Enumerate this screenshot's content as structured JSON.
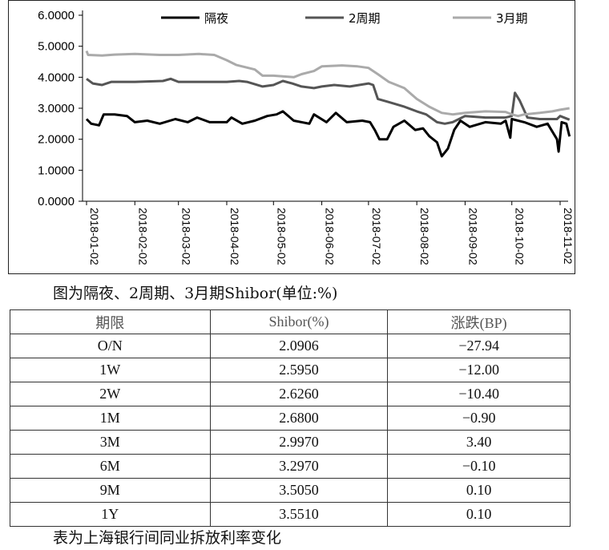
{
  "chart_data": {
    "type": "line",
    "title": "",
    "xlabel": "",
    "ylabel": "",
    "ylim": [
      0,
      6
    ],
    "y_ticks": [
      "0.0000",
      "1.0000",
      "2.0000",
      "3.0000",
      "4.0000",
      "5.0000",
      "6.0000"
    ],
    "x_ticks": [
      "2018-01-02",
      "2018-02-02",
      "2018-03-02",
      "2018-04-02",
      "2018-05-02",
      "2018-06-02",
      "2018-07-02",
      "2018-08-02",
      "2018-09-02",
      "2018-10-02",
      "2018-11-02"
    ],
    "x_range": [
      "2018-01-02",
      "2018-11-02"
    ],
    "legend_position": "top",
    "grid": false,
    "series": [
      {
        "name": "隔夜",
        "color": "#000000",
        "points": [
          [
            "2018-01-02",
            2.65
          ],
          [
            "2018-01-05",
            2.5
          ],
          [
            "2018-01-10",
            2.45
          ],
          [
            "2018-01-13",
            2.8
          ],
          [
            "2018-01-20",
            2.8
          ],
          [
            "2018-01-28",
            2.75
          ],
          [
            "2018-02-02",
            2.55
          ],
          [
            "2018-02-10",
            2.6
          ],
          [
            "2018-02-18",
            2.5
          ],
          [
            "2018-02-28",
            2.65
          ],
          [
            "2018-03-08",
            2.55
          ],
          [
            "2018-03-14",
            2.7
          ],
          [
            "2018-03-22",
            2.55
          ],
          [
            "2018-04-02",
            2.55
          ],
          [
            "2018-04-05",
            2.7
          ],
          [
            "2018-04-12",
            2.5
          ],
          [
            "2018-04-20",
            2.6
          ],
          [
            "2018-04-28",
            2.75
          ],
          [
            "2018-05-04",
            2.8
          ],
          [
            "2018-05-08",
            2.9
          ],
          [
            "2018-05-15",
            2.6
          ],
          [
            "2018-05-25",
            2.5
          ],
          [
            "2018-05-28",
            2.8
          ],
          [
            "2018-06-05",
            2.55
          ],
          [
            "2018-06-11",
            2.85
          ],
          [
            "2018-06-18",
            2.55
          ],
          [
            "2018-06-28",
            2.6
          ],
          [
            "2018-07-03",
            2.55
          ],
          [
            "2018-07-06",
            2.3
          ],
          [
            "2018-07-09",
            2.0
          ],
          [
            "2018-07-14",
            2.0
          ],
          [
            "2018-07-18",
            2.4
          ],
          [
            "2018-07-25",
            2.6
          ],
          [
            "2018-08-01",
            2.3
          ],
          [
            "2018-08-06",
            2.35
          ],
          [
            "2018-08-10",
            2.1
          ],
          [
            "2018-08-15",
            1.9
          ],
          [
            "2018-08-18",
            1.45
          ],
          [
            "2018-08-22",
            1.7
          ],
          [
            "2018-08-26",
            2.3
          ],
          [
            "2018-08-30",
            2.6
          ],
          [
            "2018-09-05",
            2.4
          ],
          [
            "2018-09-15",
            2.55
          ],
          [
            "2018-09-25",
            2.5
          ],
          [
            "2018-09-28",
            2.6
          ],
          [
            "2018-10-01",
            2.05
          ],
          [
            "2018-10-02",
            2.65
          ],
          [
            "2018-10-10",
            2.55
          ],
          [
            "2018-10-18",
            2.4
          ],
          [
            "2018-10-25",
            2.5
          ],
          [
            "2018-10-31",
            2.0
          ],
          [
            "2018-11-01",
            1.6
          ],
          [
            "2018-11-03",
            2.55
          ],
          [
            "2018-11-06",
            2.5
          ],
          [
            "2018-11-08",
            2.09
          ]
        ]
      },
      {
        "name": "2周期",
        "color": "#555555",
        "points": [
          [
            "2018-01-02",
            3.95
          ],
          [
            "2018-01-06",
            3.8
          ],
          [
            "2018-01-12",
            3.75
          ],
          [
            "2018-01-18",
            3.85
          ],
          [
            "2018-02-02",
            3.85
          ],
          [
            "2018-02-20",
            3.88
          ],
          [
            "2018-02-25",
            3.95
          ],
          [
            "2018-03-02",
            3.85
          ],
          [
            "2018-03-20",
            3.85
          ],
          [
            "2018-04-02",
            3.85
          ],
          [
            "2018-04-10",
            3.88
          ],
          [
            "2018-04-15",
            3.85
          ],
          [
            "2018-04-25",
            3.7
          ],
          [
            "2018-05-02",
            3.75
          ],
          [
            "2018-05-08",
            3.88
          ],
          [
            "2018-05-14",
            3.8
          ],
          [
            "2018-05-20",
            3.7
          ],
          [
            "2018-05-28",
            3.65
          ],
          [
            "2018-06-02",
            3.7
          ],
          [
            "2018-06-10",
            3.75
          ],
          [
            "2018-06-20",
            3.7
          ],
          [
            "2018-07-02",
            3.8
          ],
          [
            "2018-07-05",
            3.75
          ],
          [
            "2018-07-08",
            3.3
          ],
          [
            "2018-07-15",
            3.2
          ],
          [
            "2018-07-25",
            3.05
          ],
          [
            "2018-08-02",
            2.9
          ],
          [
            "2018-08-08",
            2.8
          ],
          [
            "2018-08-15",
            2.55
          ],
          [
            "2018-08-20",
            2.5
          ],
          [
            "2018-08-25",
            2.55
          ],
          [
            "2018-09-02",
            2.75
          ],
          [
            "2018-09-15",
            2.7
          ],
          [
            "2018-09-28",
            2.7
          ],
          [
            "2018-10-02",
            2.75
          ],
          [
            "2018-10-04",
            3.5
          ],
          [
            "2018-10-07",
            3.25
          ],
          [
            "2018-10-12",
            2.7
          ],
          [
            "2018-10-20",
            2.65
          ],
          [
            "2018-10-31",
            2.65
          ],
          [
            "2018-11-02",
            2.75
          ],
          [
            "2018-11-08",
            2.63
          ]
        ]
      },
      {
        "name": "3月期",
        "color": "#aaaaaa",
        "points": [
          [
            "2018-01-02",
            4.85
          ],
          [
            "2018-01-03",
            4.72
          ],
          [
            "2018-01-12",
            4.7
          ],
          [
            "2018-01-20",
            4.73
          ],
          [
            "2018-02-02",
            4.75
          ],
          [
            "2018-02-18",
            4.72
          ],
          [
            "2018-03-02",
            4.72
          ],
          [
            "2018-03-15",
            4.75
          ],
          [
            "2018-03-25",
            4.72
          ],
          [
            "2018-04-02",
            4.55
          ],
          [
            "2018-04-08",
            4.4
          ],
          [
            "2018-04-20",
            4.25
          ],
          [
            "2018-04-25",
            4.05
          ],
          [
            "2018-05-02",
            4.05
          ],
          [
            "2018-05-15",
            4.0
          ],
          [
            "2018-05-20",
            4.1
          ],
          [
            "2018-05-28",
            4.2
          ],
          [
            "2018-06-02",
            4.35
          ],
          [
            "2018-06-15",
            4.38
          ],
          [
            "2018-06-25",
            4.35
          ],
          [
            "2018-07-02",
            4.3
          ],
          [
            "2018-07-08",
            4.1
          ],
          [
            "2018-07-15",
            3.85
          ],
          [
            "2018-07-25",
            3.65
          ],
          [
            "2018-08-02",
            3.3
          ],
          [
            "2018-08-10",
            3.05
          ],
          [
            "2018-08-18",
            2.85
          ],
          [
            "2018-08-25",
            2.8
          ],
          [
            "2018-09-02",
            2.85
          ],
          [
            "2018-09-15",
            2.9
          ],
          [
            "2018-09-28",
            2.88
          ],
          [
            "2018-10-02",
            2.8
          ],
          [
            "2018-10-06",
            2.75
          ],
          [
            "2018-10-10",
            2.8
          ],
          [
            "2018-10-20",
            2.85
          ],
          [
            "2018-10-28",
            2.9
          ],
          [
            "2018-11-02",
            2.95
          ],
          [
            "2018-11-08",
            3.0
          ]
        ]
      }
    ]
  },
  "chart_caption": "图为隔夜、2周期、3月期Shibor(单位:%)",
  "table": {
    "headers": [
      "期限",
      "Shibor(%)",
      "涨跌(BP)"
    ],
    "rows": [
      [
        "O/N",
        "2.0906",
        "−27.94"
      ],
      [
        "1W",
        "2.5950",
        "−12.00"
      ],
      [
        "2W",
        "2.6260",
        "−10.40"
      ],
      [
        "1M",
        "2.6800",
        "−0.90"
      ],
      [
        "3M",
        "2.9970",
        "3.40"
      ],
      [
        "6M",
        "3.2970",
        "−0.10"
      ],
      [
        "9M",
        "3.5050",
        "0.10"
      ],
      [
        "1Y",
        "3.5510",
        "0.10"
      ]
    ]
  },
  "table_caption": "表为上海银行间同业拆放利率变化"
}
